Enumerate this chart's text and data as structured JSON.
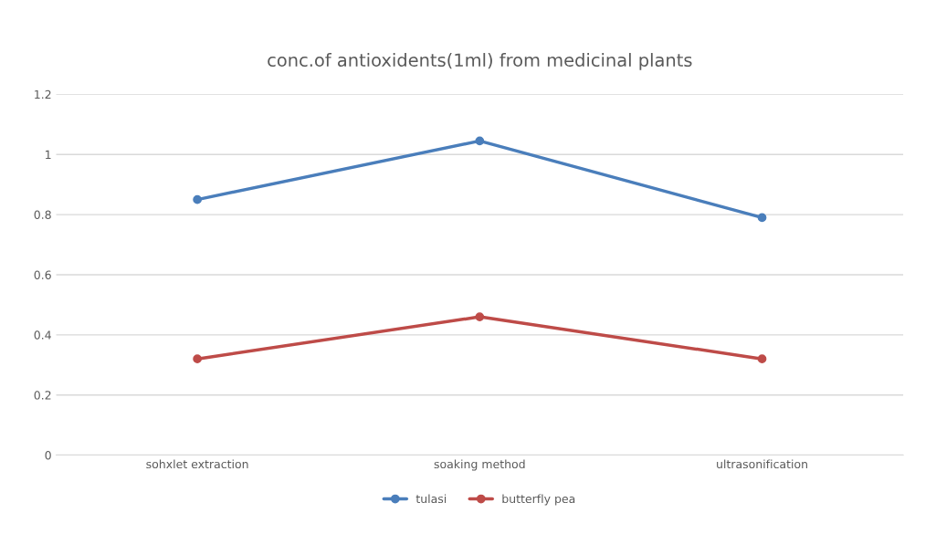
{
  "chart_data": {
    "type": "line",
    "title": "conc.of antioxidents(1ml) from medicinal plants",
    "categories": [
      "sohxlet extraction",
      "soaking method",
      "ultrasonification"
    ],
    "series": [
      {
        "name": "tulasi",
        "color": "#4a7ebb",
        "values": [
          0.85,
          1.045,
          0.79
        ]
      },
      {
        "name": "butterfly pea",
        "color": "#be4b48",
        "values": [
          0.32,
          0.46,
          0.32
        ]
      }
    ],
    "ylim": [
      0,
      1.2
    ],
    "yticks": [
      0,
      0.2,
      0.4,
      0.6,
      0.8,
      1,
      1.2
    ],
    "grid": "y",
    "legend": "bottom",
    "marker": "circle",
    "line_style": "solid"
  }
}
